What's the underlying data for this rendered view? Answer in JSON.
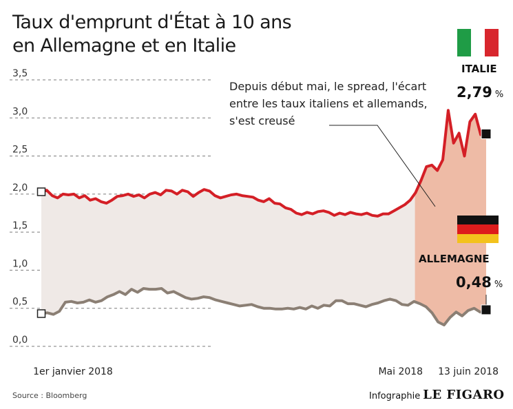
{
  "title": {
    "line1": "Taux d'emprunt d'État à 10 ans",
    "line2": "en Allemagne et en Italie"
  },
  "annotation": {
    "line1": "Depuis début mai, le spread, l'écart",
    "line2": "entre les taux italiens et allemands,",
    "line3": "s'est creusé"
  },
  "italy": {
    "name": "ITALIE",
    "value": "2,79",
    "unit": "%",
    "flag_colors": [
      "#1f9c46",
      "#ffffff",
      "#d8262d"
    ]
  },
  "germany": {
    "name": "ALLEMAGNE",
    "value": "0,48",
    "unit": "%",
    "flag_colors": [
      "#111111",
      "#dd1c1c",
      "#f3c21d"
    ]
  },
  "source": "Source : Bloomberg",
  "credit": {
    "prefix": "Infographie",
    "brand": "LE FIGARO"
  },
  "chart_data": {
    "type": "line",
    "yticks": [
      "0,0",
      "0,5",
      "1,0",
      "1,5",
      "2,0",
      "2,5",
      "3,0",
      "3,5"
    ],
    "ylim": [
      0,
      3.5
    ],
    "xticks": [
      {
        "label": "1er janvier 2018",
        "t": 0
      },
      {
        "label": "Mai 2018",
        "t": 0.817
      },
      {
        "label": "13 juin 2018",
        "t": 1
      }
    ],
    "highlight_start_t": 0.84,
    "colors": {
      "italy": "#d41f26",
      "germany": "#8b7f74",
      "fill": "#efe9e6",
      "highlight": "#eebba6",
      "grid": "#7a7a7a"
    },
    "series": [
      {
        "values": [
          2.03,
          2.05,
          1.98,
          1.95,
          2.0,
          1.99,
          2.0,
          1.95,
          1.98,
          1.92,
          1.94,
          1.9,
          1.88,
          1.92,
          1.97,
          1.98,
          2.0,
          1.97,
          1.99,
          1.95,
          2.0,
          2.02,
          1.99,
          2.05,
          2.04,
          2.0,
          2.05,
          2.03,
          1.97,
          2.02,
          2.06,
          2.04,
          1.98,
          1.95,
          1.97,
          1.99,
          2.0,
          1.98,
          1.97,
          1.96,
          1.92,
          1.9,
          1.94,
          1.88,
          1.87,
          1.82,
          1.8,
          1.75,
          1.73,
          1.76,
          1.74,
          1.77,
          1.78,
          1.76,
          1.72,
          1.75,
          1.73,
          1.76,
          1.74,
          1.73,
          1.75,
          1.72,
          1.71,
          1.74,
          1.74,
          1.78,
          1.82,
          1.86,
          1.92,
          2.02,
          2.18,
          2.36,
          2.38,
          2.31,
          2.45,
          3.1,
          2.67,
          2.8,
          2.5,
          2.95,
          3.05,
          2.78,
          2.79
        ]
      },
      {
        "values": [
          0.43,
          0.44,
          0.42,
          0.46,
          0.58,
          0.59,
          0.57,
          0.58,
          0.61,
          0.58,
          0.6,
          0.65,
          0.68,
          0.72,
          0.68,
          0.75,
          0.71,
          0.76,
          0.75,
          0.75,
          0.76,
          0.7,
          0.72,
          0.68,
          0.64,
          0.62,
          0.63,
          0.65,
          0.64,
          0.61,
          0.59,
          0.57,
          0.55,
          0.53,
          0.54,
          0.55,
          0.52,
          0.5,
          0.5,
          0.49,
          0.49,
          0.5,
          0.49,
          0.51,
          0.49,
          0.53,
          0.5,
          0.54,
          0.53,
          0.6,
          0.6,
          0.56,
          0.56,
          0.54,
          0.52,
          0.55,
          0.57,
          0.6,
          0.62,
          0.6,
          0.55,
          0.54,
          0.59,
          0.56,
          0.52,
          0.44,
          0.32,
          0.28,
          0.38,
          0.45,
          0.4,
          0.47,
          0.5,
          0.45,
          0.48
        ]
      }
    ]
  }
}
